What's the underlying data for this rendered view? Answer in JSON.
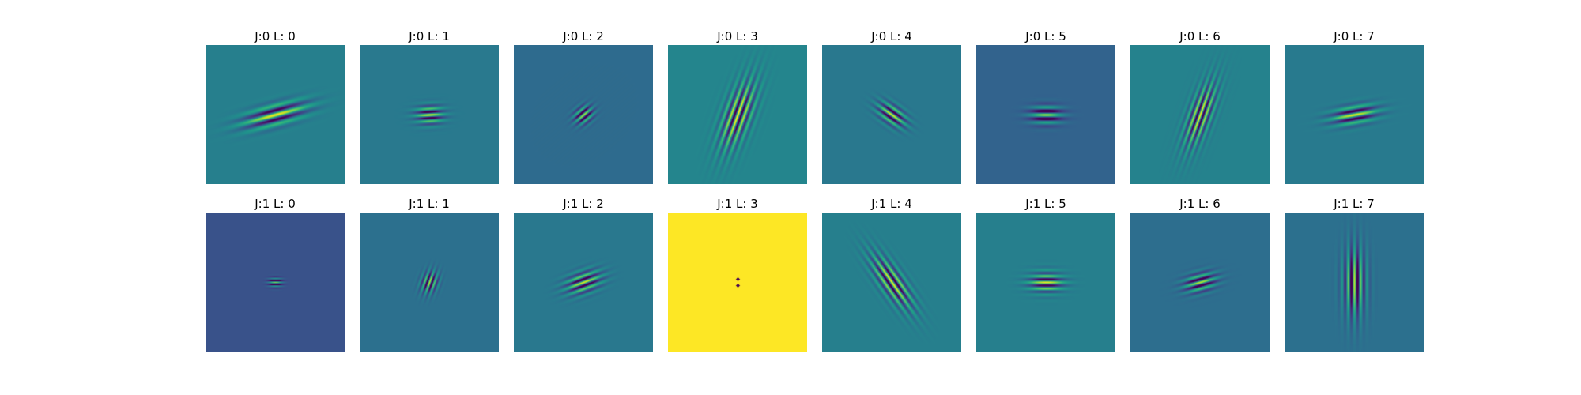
{
  "rows": [
    {
      "panels": [
        {
          "title": "J:0 L: 0",
          "bg": "#27808e",
          "orientation": 15,
          "wavelength": 12,
          "sx": 28,
          "sy": 9
        },
        {
          "title": "J:0 L: 1",
          "bg": "#297a8e",
          "orientation": 3,
          "wavelength": 8,
          "sx": 12,
          "sy": 8
        },
        {
          "title": "J:0 L: 2",
          "bg": "#2f6b8e",
          "orientation": 40,
          "wavelength": 7,
          "sx": 9,
          "sy": 7
        },
        {
          "title": "J:0 L: 3",
          "bg": "#25858e",
          "orientation": 70,
          "wavelength": 8,
          "sx": 32,
          "sy": 12
        },
        {
          "title": "J:0 L: 4",
          "bg": "#2a788e",
          "orientation": -35,
          "wavelength": 8,
          "sx": 14,
          "sy": 8
        },
        {
          "title": "J:0 L: 5",
          "bg": "#33638d",
          "orientation": 0,
          "wavelength": 10,
          "sx": 14,
          "sy": 8
        },
        {
          "title": "J:0 L: 6",
          "bg": "#26828e",
          "orientation": 70,
          "wavelength": 7,
          "sx": 30,
          "sy": 10
        },
        {
          "title": "J:0 L: 7",
          "bg": "#297b8e",
          "orientation": 10,
          "wavelength": 10,
          "sx": 20,
          "sy": 8
        }
      ]
    },
    {
      "panels": [
        {
          "title": "J:1 L: 0",
          "bg": "#3b528b",
          "orientation": 0,
          "wavelength": 5,
          "sx": 6,
          "sy": 4
        },
        {
          "title": "J:1 L: 1",
          "bg": "#2d708e",
          "orientation": 70,
          "wavelength": 6,
          "sx": 10,
          "sy": 7
        },
        {
          "title": "J:1 L: 2",
          "bg": "#2a788e",
          "orientation": 20,
          "wavelength": 8,
          "sx": 16,
          "sy": 9
        },
        {
          "title": "J:1 L: 3",
          "bg": "#fde725",
          "orientation": 0,
          "wavelength": 3,
          "sx": 2,
          "sy": 2
        },
        {
          "title": "J:1 L: 4",
          "bg": "#277f8e",
          "orientation": -55,
          "wavelength": 8,
          "sx": 28,
          "sy": 10
        },
        {
          "title": "J:1 L: 5",
          "bg": "#27808e",
          "orientation": 0,
          "wavelength": 8,
          "sx": 15,
          "sy": 9
        },
        {
          "title": "J:1 L: 6",
          "bg": "#2e6e8e",
          "orientation": 15,
          "wavelength": 8,
          "sx": 14,
          "sy": 8
        },
        {
          "title": "J:1 L: 7",
          "bg": "#2d718e",
          "orientation": 90,
          "wavelength": 8,
          "sx": 30,
          "sy": 10
        }
      ]
    }
  ]
}
